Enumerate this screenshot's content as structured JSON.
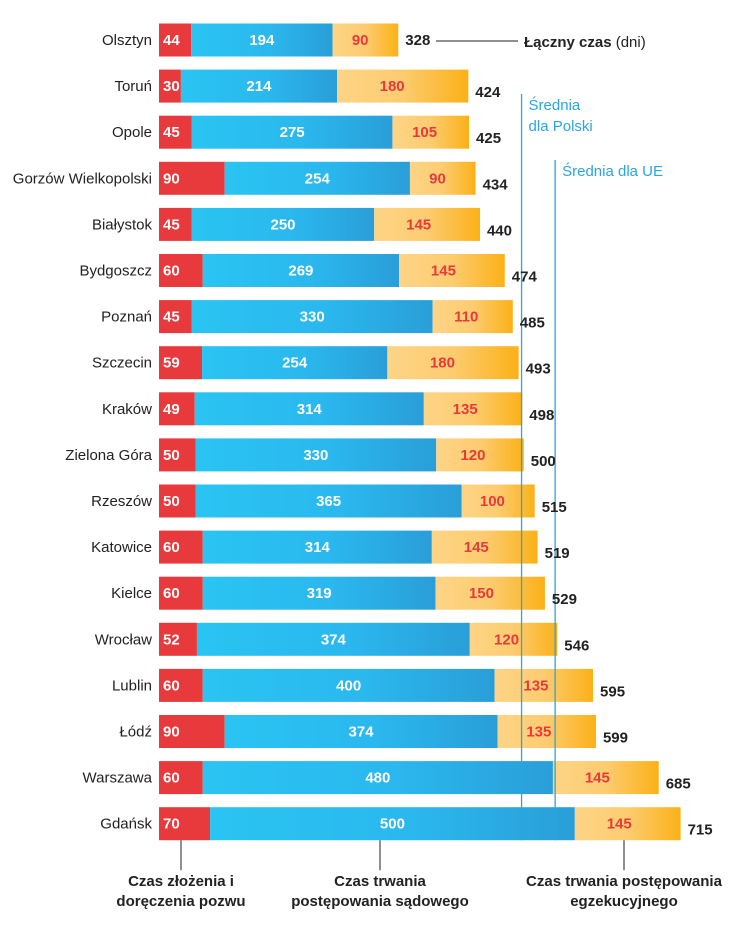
{
  "chart_data": {
    "type": "stacked-bar-horizontal",
    "title": "",
    "categories": [
      "Olsztyn",
      "Toruń",
      "Opole",
      "Gorzów Wielkopolski",
      "Białystok",
      "Bydgoszcz",
      "Poznań",
      "Szczecin",
      "Kraków",
      "Zielona Góra",
      "Rzeszów",
      "Katowice",
      "Kielce",
      "Wrocław",
      "Lublin",
      "Łódź",
      "Warszawa",
      "Gdańsk"
    ],
    "series": [
      {
        "name": "Czas złożenia i doręczenia pozwu",
        "color": "#e8393c",
        "values": [
          44,
          30,
          45,
          90,
          45,
          60,
          45,
          59,
          49,
          50,
          50,
          60,
          60,
          52,
          60,
          90,
          60,
          70
        ]
      },
      {
        "name": "Czas trwania postępowania sądowego",
        "color": "#29bdf0",
        "values": [
          194,
          214,
          275,
          254,
          250,
          269,
          330,
          254,
          314,
          330,
          365,
          314,
          319,
          374,
          400,
          374,
          480,
          500
        ]
      },
      {
        "name": "Czas trwania postępowania egzekucyjnego",
        "color": "#fbb829",
        "values": [
          90,
          180,
          105,
          90,
          145,
          145,
          110,
          180,
          135,
          120,
          100,
          145,
          150,
          120,
          135,
          135,
          145,
          145
        ]
      }
    ],
    "totals": [
      "328",
      "424",
      "425",
      "434",
      "440",
      "474",
      "485",
      "493",
      "498",
      "500",
      "515",
      "519",
      "529",
      "546",
      "595",
      "599",
      "685",
      "715"
    ],
    "total_label_bold": "Łączny czas",
    "total_label_unit": "(dni)",
    "reference_lines": [
      {
        "name_line1": "Średnia",
        "name_line2": "dla Polski",
        "value": 497
      },
      {
        "name_line1": "Średnia dla UE",
        "name_line2": "",
        "value": 543
      }
    ],
    "footer_labels": [
      {
        "line1": "Czas złożenia i",
        "line2": "doręczenia pozwu"
      },
      {
        "line1": "Czas trwania",
        "line2": "postępowania sądowego"
      },
      {
        "line1": "Czas trwania postępowania",
        "line2": "egzekucyjnego"
      }
    ],
    "colors": {
      "red": "#e8393c",
      "blue_light": "#29bdf0",
      "blue_dark": "#2a9fd8",
      "orange_light": "#fdd281",
      "orange_dark": "#fbb117",
      "seg_text_on_orange": "#e8393c",
      "ref_line": "#29a6de",
      "text": "#222222"
    }
  }
}
